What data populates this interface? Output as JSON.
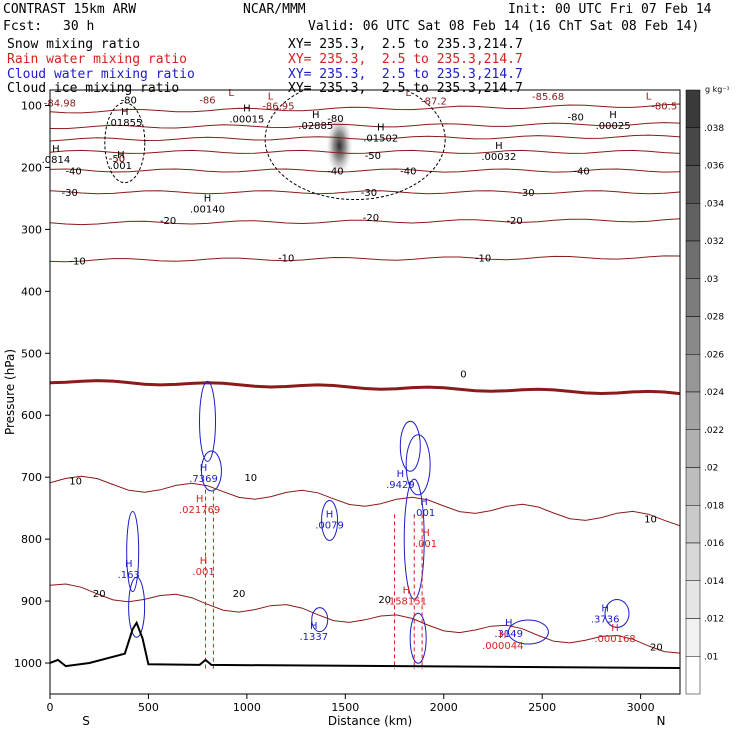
{
  "header": {
    "model": "CONTRAST 15km ARW",
    "org": "NCAR/MMM",
    "init": "Init: 00 UTC Fri 07 Feb 14",
    "fcst_label": "Fcst:",
    "fcst_value": "30 h",
    "valid": "Valid: 06 UTC Sat 08 Feb 14 (16 ChT Sat 08 Feb 14)"
  },
  "legend": [
    {
      "label": "Snow mixing ratio",
      "xy": "XY= 235.3,  2.5 to 235.3,214.7",
      "color": "#000000"
    },
    {
      "label": "Rain water mixing ratio",
      "xy": "XY= 235.3,  2.5 to 235.3,214.7",
      "color": "#d82020"
    },
    {
      "label": "Cloud water mixing ratio",
      "xy": "XY= 235.3,  2.5 to 235.3,214.7",
      "color": "#1c1cc8"
    },
    {
      "label": "Cloud ice mixing ratio",
      "xy": "XY= 235.3,  2.5 to 235.3,214.7",
      "color": "#000000"
    }
  ],
  "colorbar": {
    "unit": "g kg⁻¹",
    "ticks": [
      ".038",
      ".036",
      ".034",
      ".032",
      ".03",
      ".028",
      ".026",
      ".024",
      ".022",
      ".02",
      ".018",
      ".016",
      ".014",
      ".012",
      ".01"
    ]
  },
  "chart_data": {
    "type": "cross-section",
    "xlabel": "Distance (km)",
    "ylabel": "Pressure (hPa)",
    "xlim": [
      0,
      3200
    ],
    "ylim": [
      1050,
      75
    ],
    "x_ticks": [
      0,
      500,
      1000,
      1500,
      2000,
      2500,
      3000
    ],
    "y_ticks": [
      100,
      200,
      300,
      400,
      500,
      600,
      700,
      800,
      900,
      1000
    ],
    "x_ends": {
      "left": "S",
      "right": "N"
    },
    "isotherms": [
      {
        "t": -80,
        "p_left": 110,
        "p_right": 100,
        "labels": [
          [
            400,
            90
          ],
          [
            1450,
            120
          ],
          [
            2670,
            118
          ]
        ]
      },
      {
        "t": -70,
        "p_left": 135,
        "p_right": 130,
        "labels": []
      },
      {
        "t": -60,
        "p_left": 155,
        "p_right": 150,
        "labels": []
      },
      {
        "t": -50,
        "p_left": 175,
        "p_right": 175,
        "labels": [
          [
            340,
            185
          ],
          [
            1640,
            180
          ]
        ]
      },
      {
        "t": -40,
        "p_left": 205,
        "p_right": 205,
        "labels": [
          [
            120,
            205
          ],
          [
            1450,
            205
          ],
          [
            1820,
            205
          ],
          [
            2700,
            205
          ]
        ]
      },
      {
        "t": -30,
        "p_left": 240,
        "p_right": 240,
        "labels": [
          [
            100,
            240
          ],
          [
            1620,
            240
          ],
          [
            2420,
            240
          ]
        ]
      },
      {
        "t": -20,
        "p_left": 290,
        "p_right": 285,
        "labels": [
          [
            600,
            285
          ],
          [
            1630,
            280
          ],
          [
            2360,
            285
          ]
        ]
      },
      {
        "t": -10,
        "p_left": 350,
        "p_right": 345,
        "labels": [
          [
            140,
            350
          ],
          [
            1200,
            345
          ],
          [
            2200,
            345
          ]
        ]
      },
      {
        "t": 0,
        "p_left": 545,
        "p_right": 565,
        "labels": [
          [
            2100,
            533
          ]
        ]
      },
      {
        "t": 10,
        "p_left": 705,
        "p_right": 770,
        "labels": [
          [
            130,
            705
          ],
          [
            1020,
            700
          ],
          [
            3050,
            767
          ]
        ]
      },
      {
        "t": 20,
        "p_left": 880,
        "p_right": 975,
        "labels": [
          [
            250,
            887
          ],
          [
            960,
            887
          ],
          [
            1700,
            897
          ],
          [
            3080,
            973
          ]
        ]
      }
    ],
    "minor_isotherm_labels": [
      {
        "text": "-86",
        "x": 800,
        "p": 90
      },
      {
        "text": "-86.95",
        "x": 1160,
        "p": 100
      },
      {
        "text": "-87.2",
        "x": 1950,
        "p": 92
      },
      {
        "text": "-85.68",
        "x": 2530,
        "p": 85
      },
      {
        "text": "-80.5",
        "x": 3120,
        "p": 100
      },
      {
        "text": "-84.98",
        "x": 50,
        "p": 95
      },
      {
        "text": "-50",
        "x": 340,
        "p": 185
      }
    ],
    "extrema": [
      {
        "type": "L",
        "x": 920,
        "p": 85,
        "color": "#8b1a1a"
      },
      {
        "type": "L",
        "x": 1120,
        "p": 90,
        "color": "#8b1a1a"
      },
      {
        "type": "L",
        "x": 1820,
        "p": 85,
        "color": "#8b1a1a"
      },
      {
        "type": "L",
        "x": 3040,
        "p": 90,
        "color": "#8b1a1a"
      },
      {
        "type": "H",
        "x": 380,
        "p": 115,
        "value": ".01855",
        "color": "#000000"
      },
      {
        "type": "H",
        "x": 1000,
        "p": 110,
        "value": ".00015",
        "color": "#000000"
      },
      {
        "type": "H",
        "x": 1350,
        "p": 120,
        "value": ".02885",
        "color": "#000000"
      },
      {
        "type": "H",
        "x": 1680,
        "p": 140,
        "value": ".01502",
        "color": "#000000"
      },
      {
        "type": "H",
        "x": 2860,
        "p": 120,
        "value": ".00025",
        "color": "#000000"
      },
      {
        "type": "H",
        "x": 2280,
        "p": 170,
        "value": ".00032",
        "color": "#000000"
      },
      {
        "type": "H",
        "x": 800,
        "p": 255,
        "value": ".00140",
        "color": "#000000"
      },
      {
        "type": "H",
        "x": 30,
        "p": 175,
        "value": ".0814",
        "color": "#000000"
      },
      {
        "type": "H",
        "x": 360,
        "p": 185,
        "value": ".001",
        "color": "#000000"
      },
      {
        "type": "H",
        "x": 780,
        "p": 690,
        "value": ".7369",
        "color": "#1c1cc8"
      },
      {
        "type": "H",
        "x": 1780,
        "p": 700,
        "value": ".9429",
        "color": "#1c1cc8"
      },
      {
        "type": "H",
        "x": 1900,
        "p": 745,
        "value": ".001",
        "color": "#1c1cc8"
      },
      {
        "type": "H",
        "x": 1420,
        "p": 765,
        "value": ".0079",
        "color": "#1c1cc8"
      },
      {
        "type": "H",
        "x": 400,
        "p": 845,
        "value": ".163",
        "color": "#1c1cc8"
      },
      {
        "type": "H",
        "x": 1340,
        "p": 945,
        "value": ".1337",
        "color": "#1c1cc8"
      },
      {
        "type": "H",
        "x": 2330,
        "p": 940,
        "value": ".3149",
        "color": "#1c1cc8"
      },
      {
        "type": "H",
        "x": 2820,
        "p": 917,
        "value": ".3736",
        "color": "#1c1cc8"
      },
      {
        "type": "H",
        "x": 760,
        "p": 740,
        "value": ".021769",
        "color": "#d82020"
      },
      {
        "type": "H",
        "x": 1810,
        "p": 888,
        "value": ".158151",
        "color": "#d82020"
      },
      {
        "type": "H",
        "x": 1910,
        "p": 795,
        "value": ".001",
        "color": "#d82020"
      },
      {
        "type": "H",
        "x": 780,
        "p": 840,
        "value": ".001",
        "color": "#d82020"
      },
      {
        "type": "H",
        "x": 2300,
        "p": 960,
        "value": ".000044",
        "color": "#d82020"
      },
      {
        "type": "H",
        "x": 2870,
        "p": 948,
        "value": ".000168",
        "color": "#d82020"
      }
    ],
    "snow_max": {
      "x": 1470,
      "p": 165,
      "value": 0.02885
    },
    "terrain": [
      [
        0,
        1000
      ],
      [
        40,
        995
      ],
      [
        80,
        1005
      ],
      [
        200,
        1000
      ],
      [
        380,
        985
      ],
      [
        420,
        945
      ],
      [
        440,
        935
      ],
      [
        470,
        960
      ],
      [
        500,
        1002
      ],
      [
        760,
        1003
      ],
      [
        790,
        995
      ],
      [
        820,
        1003
      ],
      [
        3200,
        1008
      ]
    ]
  }
}
